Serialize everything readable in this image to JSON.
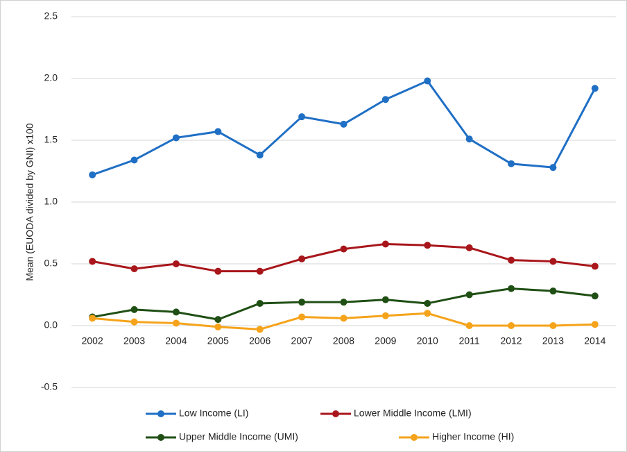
{
  "chart_data": {
    "type": "line",
    "ylabel": "Mean (EUODA divided by GNI) x100",
    "categories": [
      "2002",
      "2003",
      "2004",
      "2005",
      "2006",
      "2007",
      "2008",
      "2009",
      "2010",
      "2011",
      "2012",
      "2013",
      "2014"
    ],
    "series": [
      {
        "name": "Low Income (LI)",
        "color": "#1f6fc5",
        "values": [
          1.22,
          1.34,
          1.52,
          1.57,
          1.38,
          1.69,
          1.63,
          1.83,
          1.98,
          1.51,
          1.31,
          1.28,
          1.92
        ]
      },
      {
        "name": "Lower Middle Income (LMI)",
        "color": "#a8161b",
        "values": [
          0.52,
          0.46,
          0.5,
          0.44,
          0.44,
          0.54,
          0.62,
          0.66,
          0.65,
          0.63,
          0.53,
          0.52,
          0.48
        ]
      },
      {
        "name": "Upper Middle Income (UMI)",
        "color": "#1f4f14",
        "values": [
          0.07,
          0.13,
          0.11,
          0.05,
          0.18,
          0.19,
          0.19,
          0.21,
          0.18,
          0.25,
          0.3,
          0.28,
          0.24
        ]
      },
      {
        "name": "Higher Income (HI)",
        "color": "#f5a31a",
        "values": [
          0.06,
          0.03,
          0.02,
          -0.01,
          -0.03,
          0.07,
          0.06,
          0.08,
          0.1,
          0.0,
          0.0,
          0.0,
          0.01
        ]
      }
    ],
    "ylim": [
      -0.5,
      2.5
    ],
    "yticks": [
      2.5,
      {
        "value": 2,
        "label": "2.0"
      },
      1.5,
      {
        "value": 1,
        "label": "1.0"
      },
      0.5,
      {
        "value": 0,
        "label": "0.0"
      },
      -0.5
    ],
    "grid": true
  }
}
